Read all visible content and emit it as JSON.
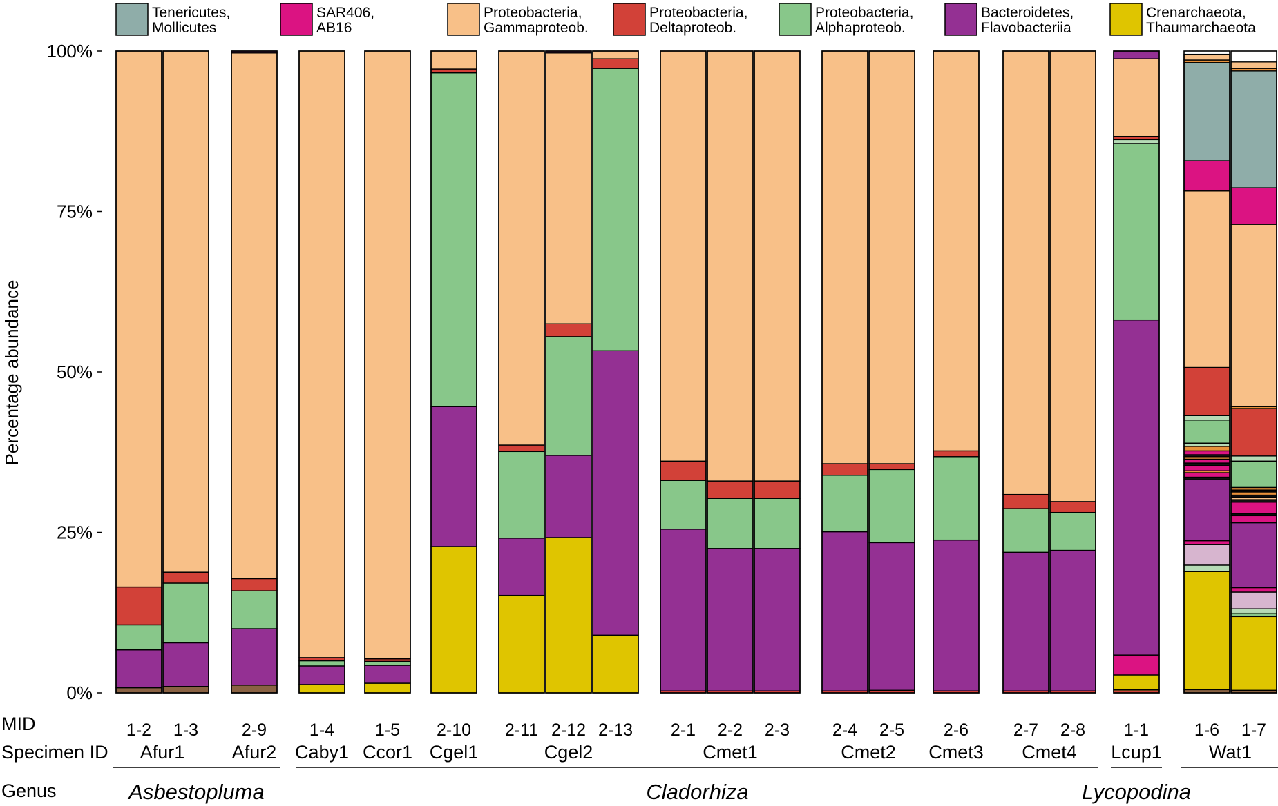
{
  "chart_data": {
    "type": "bar",
    "stacked": true,
    "ylabel": "Percentage abundance",
    "ylim": [
      0,
      100
    ],
    "yticks": [
      {
        "value": 0,
        "label": "0%"
      },
      {
        "value": 25,
        "label": "25%"
      },
      {
        "value": 50,
        "label": "50%"
      },
      {
        "value": 75,
        "label": "75%"
      },
      {
        "value": 100,
        "label": "100%"
      }
    ],
    "legend": [
      {
        "key": "tene",
        "line1": "Tenericutes,",
        "line2": "Mollicutes",
        "color": "#8fada9"
      },
      {
        "key": "sar",
        "line1": "SAR406,",
        "line2": "AB16",
        "color": "#db1382"
      },
      {
        "key": "gamma",
        "line1": "Proteobacteria,",
        "line2": "Gammaproteob.",
        "color": "#f8c088"
      },
      {
        "key": "delta",
        "line1": "Proteobacteria,",
        "line2": "Deltaproteob.",
        "color": "#d24138"
      },
      {
        "key": "alpha",
        "line1": "Proteobacteria,",
        "line2": "Alphaproteob.",
        "color": "#88c78a"
      },
      {
        "key": "bact",
        "line1": "Bacteroidetes,",
        "line2": "Flavobacteriia",
        "color": "#943093"
      },
      {
        "key": "cren",
        "line1": "Crenarchaeota,",
        "line2": "Thaumarchaeota",
        "color": "#dfc500"
      }
    ],
    "other_colors": {
      "brown": "#8a6243",
      "pink": "#d7b5cf",
      "orange": "#e8913a",
      "black": "#111111",
      "lightgreen": "#b6dbb6"
    },
    "row_labels": {
      "mid": "MID",
      "specimen": "Specimen ID",
      "genus": "Genus"
    },
    "samples": [
      {
        "mid": "1-2",
        "segments": [
          {
            "c": "brown",
            "v": 0.8
          },
          {
            "c": "bact",
            "v": 5.9
          },
          {
            "c": "alpha",
            "v": 3.9
          },
          {
            "c": "delta",
            "v": 5.9
          },
          {
            "c": "gamma",
            "v": 83.5
          }
        ]
      },
      {
        "mid": "1-3",
        "segments": [
          {
            "c": "brown",
            "v": 1.0
          },
          {
            "c": "bact",
            "v": 6.8
          },
          {
            "c": "alpha",
            "v": 9.3
          },
          {
            "c": "delta",
            "v": 1.7
          },
          {
            "c": "gamma",
            "v": 81.2
          }
        ]
      },
      {
        "mid": "2-9",
        "segments": [
          {
            "c": "brown",
            "v": 1.2
          },
          {
            "c": "bact",
            "v": 8.8
          },
          {
            "c": "alpha",
            "v": 5.9
          },
          {
            "c": "delta",
            "v": 1.9
          },
          {
            "c": "gamma",
            "v": 81.9
          },
          {
            "c": "bact",
            "v": 0.3
          }
        ]
      },
      {
        "mid": "1-4",
        "segments": [
          {
            "c": "cren",
            "v": 1.3
          },
          {
            "c": "bact",
            "v": 2.9
          },
          {
            "c": "alpha",
            "v": 0.8
          },
          {
            "c": "delta",
            "v": 0.5
          },
          {
            "c": "gamma",
            "v": 94.5
          }
        ]
      },
      {
        "mid": "1-5",
        "segments": [
          {
            "c": "cren",
            "v": 1.5
          },
          {
            "c": "bact",
            "v": 2.8
          },
          {
            "c": "alpha",
            "v": 0.6
          },
          {
            "c": "delta",
            "v": 0.4
          },
          {
            "c": "gamma",
            "v": 94.7
          }
        ]
      },
      {
        "mid": "2-10",
        "segments": [
          {
            "c": "cren",
            "v": 22.8
          },
          {
            "c": "bact",
            "v": 21.8
          },
          {
            "c": "alpha",
            "v": 52.0
          },
          {
            "c": "delta",
            "v": 0.6
          },
          {
            "c": "gamma",
            "v": 2.8
          }
        ]
      },
      {
        "mid": "2-11",
        "segments": [
          {
            "c": "cren",
            "v": 15.2
          },
          {
            "c": "bact",
            "v": 8.9
          },
          {
            "c": "alpha",
            "v": 13.5
          },
          {
            "c": "delta",
            "v": 1.0
          },
          {
            "c": "gamma",
            "v": 61.4
          }
        ]
      },
      {
        "mid": "2-12",
        "segments": [
          {
            "c": "cren",
            "v": 24.2
          },
          {
            "c": "bact",
            "v": 12.8
          },
          {
            "c": "alpha",
            "v": 18.5
          },
          {
            "c": "delta",
            "v": 2.0
          },
          {
            "c": "gamma",
            "v": 42.2
          },
          {
            "c": "bact",
            "v": 0.3
          }
        ]
      },
      {
        "mid": "2-13",
        "segments": [
          {
            "c": "cren",
            "v": 9.0
          },
          {
            "c": "bact",
            "v": 44.3
          },
          {
            "c": "alpha",
            "v": 44.0
          },
          {
            "c": "delta",
            "v": 1.5
          },
          {
            "c": "gamma",
            "v": 1.2
          }
        ]
      },
      {
        "mid": "2-1",
        "segments": [
          {
            "c": "delta",
            "v": 0.3
          },
          {
            "c": "bact",
            "v": 25.2
          },
          {
            "c": "alpha",
            "v": 7.6
          },
          {
            "c": "delta",
            "v": 3.0
          },
          {
            "c": "gamma",
            "v": 63.9
          }
        ]
      },
      {
        "mid": "2-2",
        "segments": [
          {
            "c": "delta",
            "v": 0.3
          },
          {
            "c": "bact",
            "v": 22.2
          },
          {
            "c": "alpha",
            "v": 7.8
          },
          {
            "c": "delta",
            "v": 2.7
          },
          {
            "c": "gamma",
            "v": 67.0
          }
        ]
      },
      {
        "mid": "2-3",
        "segments": [
          {
            "c": "delta",
            "v": 0.3
          },
          {
            "c": "bact",
            "v": 22.2
          },
          {
            "c": "alpha",
            "v": 7.8
          },
          {
            "c": "delta",
            "v": 2.7
          },
          {
            "c": "gamma",
            "v": 67.0
          }
        ]
      },
      {
        "mid": "2-4",
        "segments": [
          {
            "c": "delta",
            "v": 0.3
          },
          {
            "c": "bact",
            "v": 24.8
          },
          {
            "c": "alpha",
            "v": 8.8
          },
          {
            "c": "delta",
            "v": 1.8
          },
          {
            "c": "gamma",
            "v": 64.3
          }
        ]
      },
      {
        "mid": "2-5",
        "segments": [
          {
            "c": "delta",
            "v": 0.4
          },
          {
            "c": "bact",
            "v": 23.0
          },
          {
            "c": "alpha",
            "v": 11.4
          },
          {
            "c": "delta",
            "v": 0.9
          },
          {
            "c": "gamma",
            "v": 64.3
          }
        ]
      },
      {
        "mid": "2-6",
        "segments": [
          {
            "c": "delta",
            "v": 0.3
          },
          {
            "c": "bact",
            "v": 23.5
          },
          {
            "c": "alpha",
            "v": 13.0
          },
          {
            "c": "delta",
            "v": 0.9
          },
          {
            "c": "gamma",
            "v": 62.3
          }
        ]
      },
      {
        "mid": "2-7",
        "segments": [
          {
            "c": "delta",
            "v": 0.3
          },
          {
            "c": "bact",
            "v": 21.6
          },
          {
            "c": "alpha",
            "v": 6.8
          },
          {
            "c": "delta",
            "v": 2.2
          },
          {
            "c": "gamma",
            "v": 69.1
          }
        ]
      },
      {
        "mid": "2-8",
        "segments": [
          {
            "c": "delta",
            "v": 0.3
          },
          {
            "c": "bact",
            "v": 21.9
          },
          {
            "c": "alpha",
            "v": 5.9
          },
          {
            "c": "delta",
            "v": 1.7
          },
          {
            "c": "gamma",
            "v": 70.2
          }
        ]
      },
      {
        "mid": "1-1",
        "segments": [
          {
            "c": "delta",
            "v": 0.3
          },
          {
            "c": "orange",
            "v": 0.2
          },
          {
            "c": "cren",
            "v": 2.3
          },
          {
            "c": "sar",
            "v": 3.1
          },
          {
            "c": "bact",
            "v": 52.2
          },
          {
            "c": "alpha",
            "v": 27.5
          },
          {
            "c": "lightgreen",
            "v": 0.6
          },
          {
            "c": "delta",
            "v": 0.5
          },
          {
            "c": "gamma",
            "v": 12.1
          },
          {
            "c": "bact",
            "v": 1.2
          }
        ]
      },
      {
        "mid": "1-6",
        "segments": [
          {
            "c": "brown",
            "v": 0.5
          },
          {
            "c": "cren",
            "v": 18.4
          },
          {
            "c": "lightgreen",
            "v": 1.0
          },
          {
            "c": "pink",
            "v": 3.2
          },
          {
            "c": "sar",
            "v": 0.6
          },
          {
            "c": "bact",
            "v": 9.5
          },
          {
            "c": "black",
            "v": 0.4
          },
          {
            "c": "sar",
            "v": 0.7
          },
          {
            "c": "orange",
            "v": 0.3
          },
          {
            "c": "sar",
            "v": 0.8
          },
          {
            "c": "black",
            "v": 0.4
          },
          {
            "c": "sar",
            "v": 0.6
          },
          {
            "c": "orange",
            "v": 0.4
          },
          {
            "c": "black",
            "v": 0.3
          },
          {
            "c": "sar",
            "v": 0.6
          },
          {
            "c": "orange",
            "v": 0.7
          },
          {
            "c": "lightgreen",
            "v": 0.5
          },
          {
            "c": "alpha",
            "v": 3.6
          },
          {
            "c": "lightgreen",
            "v": 0.7
          },
          {
            "c": "delta",
            "v": 7.5
          },
          {
            "c": "gamma",
            "v": 27.5
          },
          {
            "c": "sar",
            "v": 4.7
          },
          {
            "c": "tene",
            "v": 15.3
          },
          {
            "c": "orange",
            "v": 0.4
          },
          {
            "c": "gamma",
            "v": 0.9
          }
        ]
      },
      {
        "mid": "1-7",
        "segments": [
          {
            "c": "brown",
            "v": 0.4
          },
          {
            "c": "cren",
            "v": 11.5
          },
          {
            "c": "alpha",
            "v": 0.5
          },
          {
            "c": "lightgreen",
            "v": 0.7
          },
          {
            "c": "pink",
            "v": 2.6
          },
          {
            "c": "sar",
            "v": 0.7
          },
          {
            "c": "bact",
            "v": 10.1
          },
          {
            "c": "sar",
            "v": 1.1
          },
          {
            "c": "black",
            "v": 0.3
          },
          {
            "c": "sar",
            "v": 1.8
          },
          {
            "c": "black",
            "v": 0.4
          },
          {
            "c": "gamma",
            "v": 0.4
          },
          {
            "c": "black",
            "v": 0.3
          },
          {
            "c": "orange",
            "v": 0.5
          },
          {
            "c": "black",
            "v": 0.3
          },
          {
            "c": "orange",
            "v": 0.4
          },
          {
            "c": "alpha",
            "v": 4.1
          },
          {
            "c": "lightgreen",
            "v": 0.8
          },
          {
            "c": "delta",
            "v": 7.4
          },
          {
            "c": "orange",
            "v": 0.3
          },
          {
            "c": "gamma",
            "v": 28.4
          },
          {
            "c": "sar",
            "v": 5.7
          },
          {
            "c": "tene",
            "v": 18.2
          },
          {
            "c": "orange",
            "v": 0.4
          },
          {
            "c": "gamma",
            "v": 1.0
          }
        ]
      }
    ],
    "specimens": [
      {
        "label": "Afur1",
        "mids": [
          "1-2",
          "1-3"
        ]
      },
      {
        "label": "Afur2",
        "mids": [
          "2-9"
        ]
      },
      {
        "label": "Caby1",
        "mids": [
          "1-4"
        ]
      },
      {
        "label": "Ccor1",
        "mids": [
          "1-5"
        ]
      },
      {
        "label": "Cgel1",
        "mids": [
          "2-10"
        ]
      },
      {
        "label": "Cgel2",
        "mids": [
          "2-11",
          "2-12",
          "2-13"
        ]
      },
      {
        "label": "Cmet1",
        "mids": [
          "2-1",
          "2-2",
          "2-3"
        ]
      },
      {
        "label": "Cmet2",
        "mids": [
          "2-4",
          "2-5"
        ]
      },
      {
        "label": "Cmet3",
        "mids": [
          "2-6"
        ]
      },
      {
        "label": "Cmet4",
        "mids": [
          "2-7",
          "2-8"
        ]
      },
      {
        "label": "Lcup1",
        "mids": [
          "1-1"
        ]
      },
      {
        "label": "Wat1",
        "mids": [
          "1-6",
          "1-7"
        ]
      }
    ],
    "genera": [
      {
        "label": "Asbestopluma",
        "first_mid": "1-2",
        "last_mid": "2-9"
      },
      {
        "label": "Cladorhiza",
        "first_mid": "1-4",
        "last_mid": "2-8"
      },
      {
        "label": "Lycopodina",
        "first_mid": "1-1",
        "last_mid": "1-1"
      },
      {
        "label": "",
        "first_mid": "1-6",
        "last_mid": "1-7"
      }
    ]
  }
}
